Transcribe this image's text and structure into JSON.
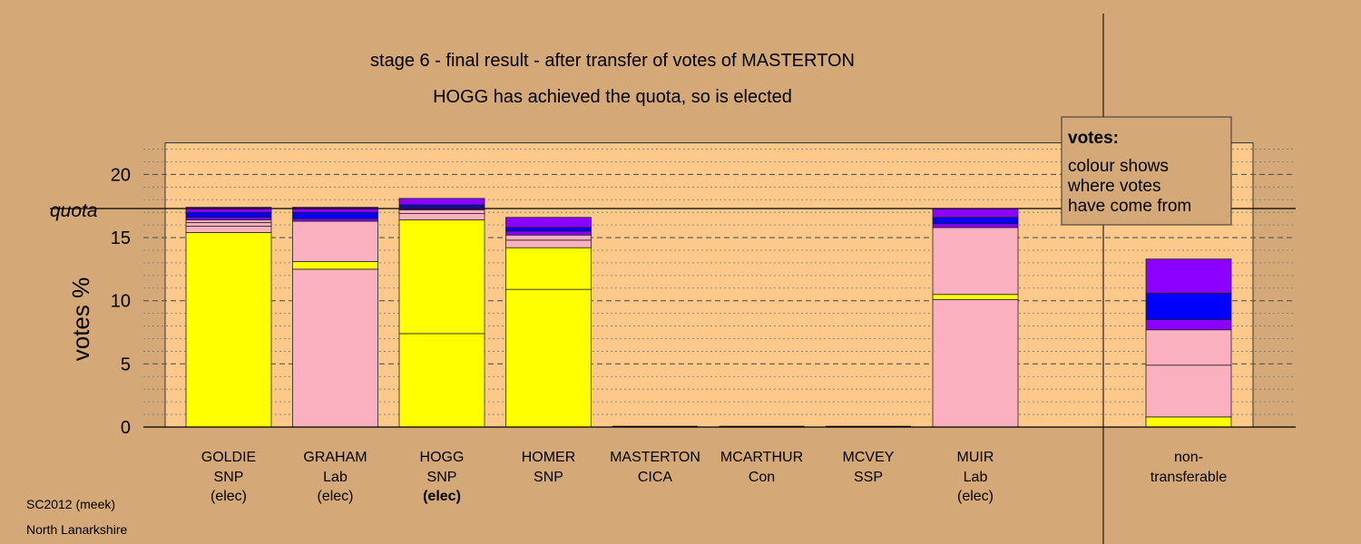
{
  "chart_data": {
    "type": "bar",
    "stacked": true,
    "title": "stage 6 - final result - after transfer of votes of MASTERTON",
    "subtitle": "HOGG has achieved the quota, so is elected",
    "ylabel": "votes %",
    "ylim": [
      0,
      22.5
    ],
    "yticks": [
      0,
      5,
      10,
      15,
      20
    ],
    "quota": 17.3,
    "quota_label": "quota",
    "grid": true,
    "colors": {
      "background": "#d4a877",
      "plot_background": "#fdc98a",
      "yellow": "#ffff00",
      "pink": "#fbb0c0",
      "blue": "#0000ff",
      "purple": "#8b00ff"
    },
    "candidates": [
      {
        "name": "GOLDIE",
        "party": "SNP",
        "status": "(elec)",
        "status_bold": false,
        "segments": [
          {
            "color": "yellow",
            "value": 15.4
          },
          {
            "color": "pink",
            "value": 0.5
          },
          {
            "color": "pink",
            "value": 0.3
          },
          {
            "color": "pink",
            "value": 0.2
          },
          {
            "color": "purple",
            "value": 0.2
          },
          {
            "color": "blue",
            "value": 0.4
          },
          {
            "color": "purple",
            "value": 0.4
          }
        ]
      },
      {
        "name": "GRAHAM",
        "party": "Lab",
        "status": "(elec)",
        "status_bold": false,
        "segments": [
          {
            "color": "pink",
            "value": 12.5
          },
          {
            "color": "yellow",
            "value": 0.6
          },
          {
            "color": "pink",
            "value": 3.2
          },
          {
            "color": "purple",
            "value": 0.2
          },
          {
            "color": "blue",
            "value": 0.5
          },
          {
            "color": "purple",
            "value": 0.4
          }
        ]
      },
      {
        "name": "HOGG",
        "party": "SNP",
        "status": "(elec)",
        "status_bold": true,
        "segments": [
          {
            "color": "yellow",
            "value": 7.4
          },
          {
            "color": "yellow",
            "value": 9.0
          },
          {
            "color": "pink",
            "value": 0.5
          },
          {
            "color": "pink",
            "value": 0.3
          },
          {
            "color": "purple",
            "value": 0.2
          },
          {
            "color": "blue",
            "value": 0.2
          },
          {
            "color": "purple",
            "value": 0.5
          }
        ]
      },
      {
        "name": "HOMER",
        "party": "SNP",
        "status": "",
        "status_bold": false,
        "segments": [
          {
            "color": "yellow",
            "value": 10.9
          },
          {
            "color": "yellow",
            "value": 3.3
          },
          {
            "color": "pink",
            "value": 0.6
          },
          {
            "color": "pink",
            "value": 0.4
          },
          {
            "color": "purple",
            "value": 0.3
          },
          {
            "color": "blue",
            "value": 0.3
          },
          {
            "color": "purple",
            "value": 0.8
          }
        ]
      },
      {
        "name": "MASTERTON",
        "party": "CICA",
        "status": "",
        "status_bold": false,
        "segments": []
      },
      {
        "name": "MCARTHUR",
        "party": "Con",
        "status": "",
        "status_bold": false,
        "segments": []
      },
      {
        "name": "MCVEY",
        "party": "SSP",
        "status": "",
        "status_bold": false,
        "segments": []
      },
      {
        "name": "MUIR",
        "party": "Lab",
        "status": "(elec)",
        "status_bold": false,
        "segments": [
          {
            "color": "pink",
            "value": 10.1
          },
          {
            "color": "yellow",
            "value": 0.4
          },
          {
            "color": "pink",
            "value": 5.3
          },
          {
            "color": "purple",
            "value": 0.3
          },
          {
            "color": "blue",
            "value": 0.5
          },
          {
            "color": "purple",
            "value": 0.7
          }
        ]
      }
    ],
    "nontransferable": {
      "label_line1": "non-",
      "label_line2": "transferable",
      "segments": [
        {
          "color": "yellow",
          "value": 0.8
        },
        {
          "color": "pink",
          "value": 4.1
        },
        {
          "color": "pink",
          "value": 2.8
        },
        {
          "color": "purple",
          "value": 0.8
        },
        {
          "color": "blue",
          "value": 2.1
        },
        {
          "color": "purple",
          "value": 2.7
        }
      ]
    },
    "legend": {
      "title": "votes:",
      "lines": [
        "colour shows",
        "where votes",
        "have come from"
      ]
    }
  },
  "footer": {
    "line1": "SC2012 (meek)",
    "line2": "North Lanarkshire"
  }
}
